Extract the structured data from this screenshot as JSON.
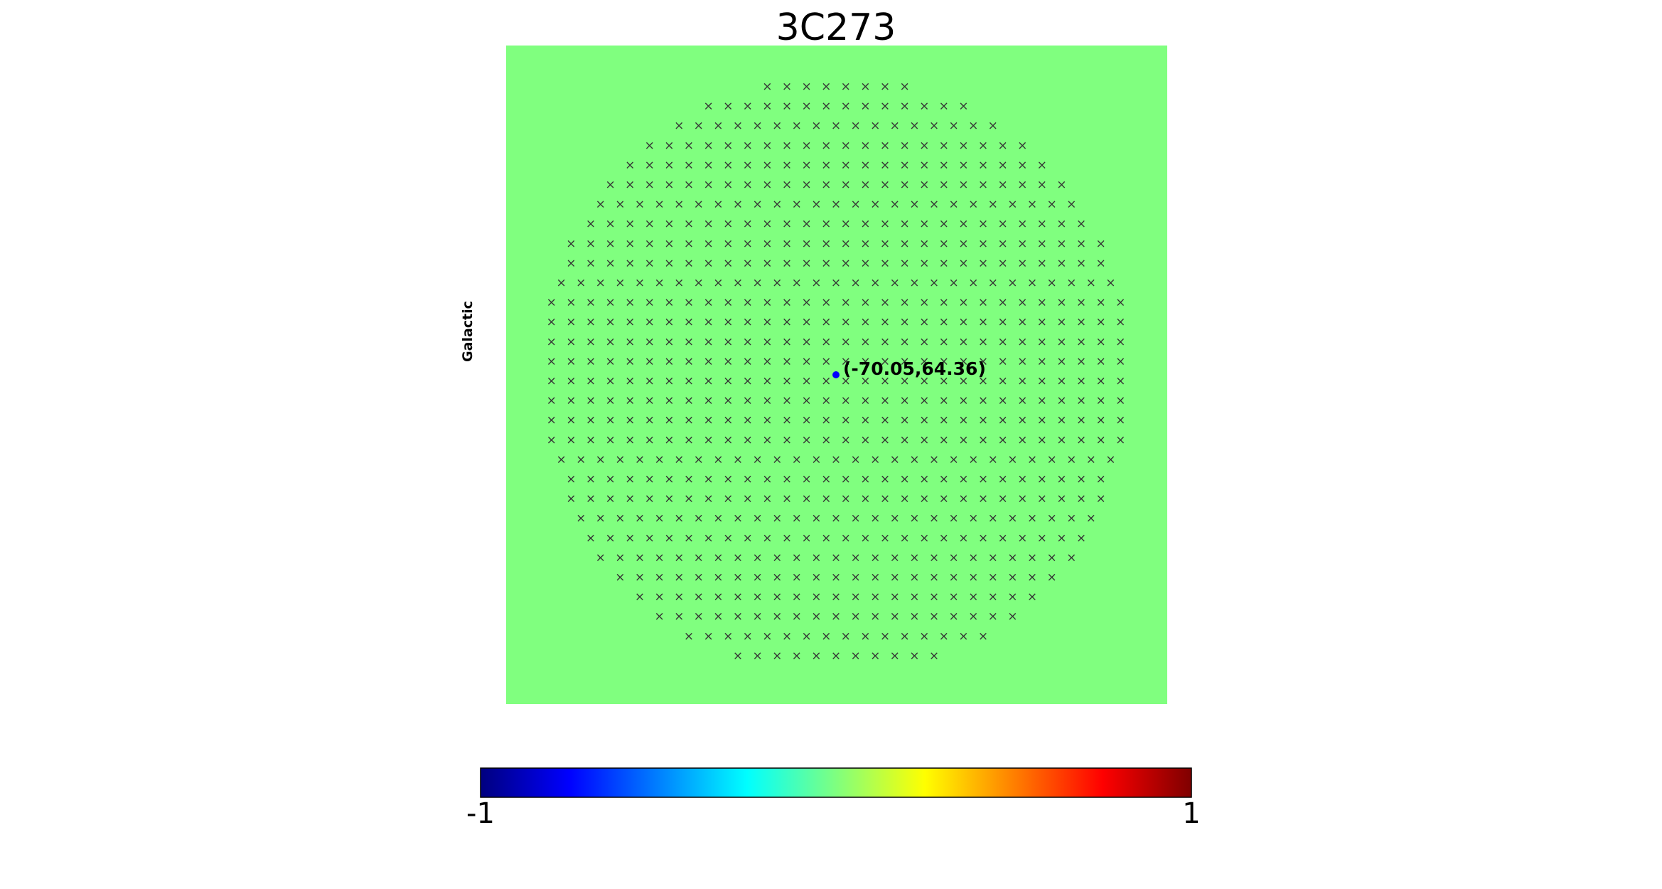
{
  "chart_data": {
    "type": "heatmap",
    "title": "3C273",
    "side_label": "Galactic",
    "background_color": "#80ff7f",
    "grid_marker": "×",
    "grid_marker_color": "#333333",
    "grid_row_counts": [
      8,
      14,
      17,
      20,
      22,
      24,
      25,
      26,
      28,
      28,
      29,
      30,
      30,
      30,
      30,
      30,
      30,
      30,
      30,
      29,
      28,
      28,
      27,
      26,
      25,
      23,
      21,
      19,
      16,
      11
    ],
    "highlighted_point": {
      "lon": -70.05,
      "lat": 64.36,
      "label": "(-70.05,64.36)",
      "color": "#0000ff"
    },
    "colorbar": {
      "colormap": "jet",
      "min_label": "-1",
      "max_label": "1",
      "range": [
        -1,
        1
      ]
    }
  }
}
